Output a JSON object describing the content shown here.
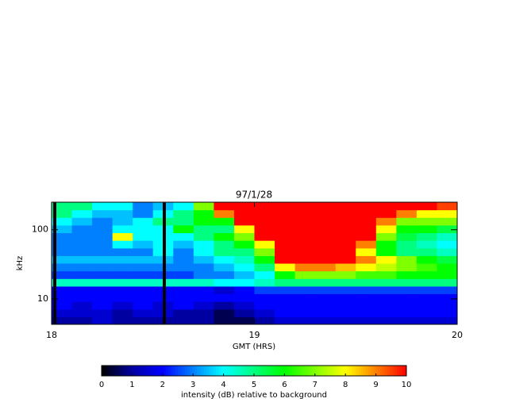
{
  "chart_data": {
    "type": "spectrogram",
    "title": "97/1/28",
    "x_label": "GMT (HRS)",
    "y_label": "kHz",
    "colorbar_label": "intensity (dB) relative to background",
    "x_edges": [
      18.0,
      18.1,
      18.2,
      18.3,
      18.4,
      18.5,
      18.6,
      18.7,
      18.8,
      18.9,
      19.0,
      19.1,
      19.2,
      19.3,
      19.4,
      19.5,
      19.6,
      19.7,
      19.8,
      19.9,
      20.0
    ],
    "y_edges": [
      4.3,
      5.5,
      7.1,
      9.2,
      11.9,
      15.3,
      19.7,
      25.4,
      32.8,
      42.2,
      54.4,
      70.2,
      90.5,
      116.7,
      150.4,
      193.9,
      250
    ],
    "values": [
      [
        1,
        1,
        1.5,
        1,
        1,
        1,
        1,
        1,
        0.5,
        0.5,
        1,
        1.5,
        1.5,
        1.5,
        1.5,
        1.5,
        1.5,
        1.5,
        1.5,
        1.5
      ],
      [
        1.5,
        1.5,
        1.5,
        1,
        1.5,
        1.5,
        1,
        1,
        0.5,
        1,
        1.5,
        2,
        2,
        2,
        2,
        2,
        2,
        2,
        2,
        2
      ],
      [
        2,
        1.5,
        2,
        1.5,
        2,
        1.5,
        2,
        1.5,
        1,
        1.5,
        2,
        2,
        2,
        2,
        2,
        2,
        2,
        2,
        2,
        2
      ],
      [
        2,
        2,
        2,
        2,
        2,
        2,
        2,
        2,
        2,
        2,
        2,
        2,
        2,
        2,
        2,
        2,
        2,
        2,
        2,
        2
      ],
      [
        2,
        2,
        2,
        2,
        2,
        2,
        2,
        2,
        1.5,
        2,
        2.5,
        2.5,
        2.5,
        2.5,
        2.5,
        2.5,
        2.5,
        2.5,
        2.5,
        2.5
      ],
      [
        4.5,
        4.5,
        4.5,
        4.5,
        4.5,
        4.5,
        4.5,
        4.5,
        4,
        4,
        4.5,
        5,
        5,
        5,
        5,
        5,
        5,
        5,
        5,
        5
      ],
      [
        2.5,
        2.5,
        2.5,
        2.5,
        2.5,
        2.5,
        2.5,
        3,
        3,
        3.5,
        4,
        6,
        7,
        7,
        7,
        6.5,
        6.5,
        6,
        6,
        6
      ],
      [
        3,
        3,
        3,
        3,
        3,
        3,
        3,
        3,
        3.5,
        4,
        5,
        8,
        9,
        9,
        8.5,
        8,
        7.5,
        7,
        6.5,
        6
      ],
      [
        3.5,
        3.5,
        3.5,
        3.5,
        3.5,
        3.5,
        3,
        3.5,
        4,
        4.5,
        6,
        10,
        10,
        10,
        10,
        9,
        8,
        7,
        6,
        5.5
      ],
      [
        3,
        3,
        3,
        3,
        3,
        4,
        3,
        4,
        5,
        5,
        7,
        10,
        10,
        10,
        10,
        8,
        6,
        5,
        5,
        4.5
      ],
      [
        3,
        3,
        3,
        4,
        3.5,
        4,
        3.5,
        4,
        5,
        6,
        8,
        10,
        10,
        10,
        10,
        9,
        6,
        5,
        4.5,
        4
      ],
      [
        3,
        3,
        3,
        8,
        4,
        4,
        4,
        5,
        6,
        7,
        10,
        10,
        10,
        10,
        10,
        10,
        7,
        5.5,
        5,
        4.5
      ],
      [
        3.5,
        3,
        3,
        4,
        4,
        4,
        6,
        5,
        5,
        8,
        10,
        10,
        10,
        10,
        10,
        10,
        8,
        6,
        6,
        5.5
      ],
      [
        4,
        3.5,
        3,
        3.5,
        4,
        5,
        5,
        6,
        6,
        10,
        10,
        10,
        10,
        10,
        10,
        10,
        9,
        7,
        7,
        7
      ],
      [
        5,
        4,
        3.5,
        3.5,
        3,
        4,
        5,
        6,
        9,
        10,
        10,
        10,
        10,
        10,
        10,
        10,
        10,
        9,
        8,
        8
      ],
      [
        5,
        5,
        4,
        4,
        3,
        3.5,
        4,
        7,
        10,
        10,
        10,
        10,
        10,
        10,
        10,
        10,
        10,
        10,
        10,
        9.5
      ]
    ],
    "xlim": [
      18,
      20
    ],
    "xticks": [
      18,
      19,
      20
    ],
    "ylim": [
      4.3,
      250
    ],
    "yticks": [
      10,
      100
    ],
    "y_log": true,
    "clim": [
      0,
      10
    ],
    "cticks": [
      0,
      1,
      2,
      3,
      4,
      5,
      6,
      7,
      8,
      9,
      10
    ],
    "colorscale": [
      "#000000",
      "#0000a0",
      "#0000ff",
      "#0080ff",
      "#00ffff",
      "#00ff80",
      "#00ff00",
      "#80ff00",
      "#ffff00",
      "#ff8000",
      "#ff0000"
    ]
  }
}
